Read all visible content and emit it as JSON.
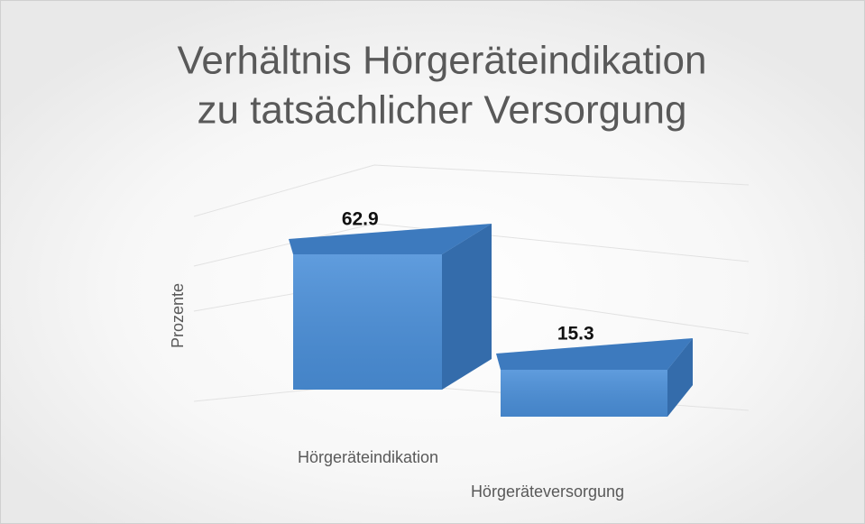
{
  "chart_data": {
    "type": "bar3d",
    "title": [
      "Verhältnis Hörgeräteindikation",
      "zu tatsächlicher Versorgung"
    ],
    "y_label": "Prozente",
    "categories": [
      "Hörgeräteindikation",
      "Hörgeräteversorgung"
    ],
    "values": [
      62.9,
      15.3
    ],
    "color": "#4a8fd9"
  }
}
